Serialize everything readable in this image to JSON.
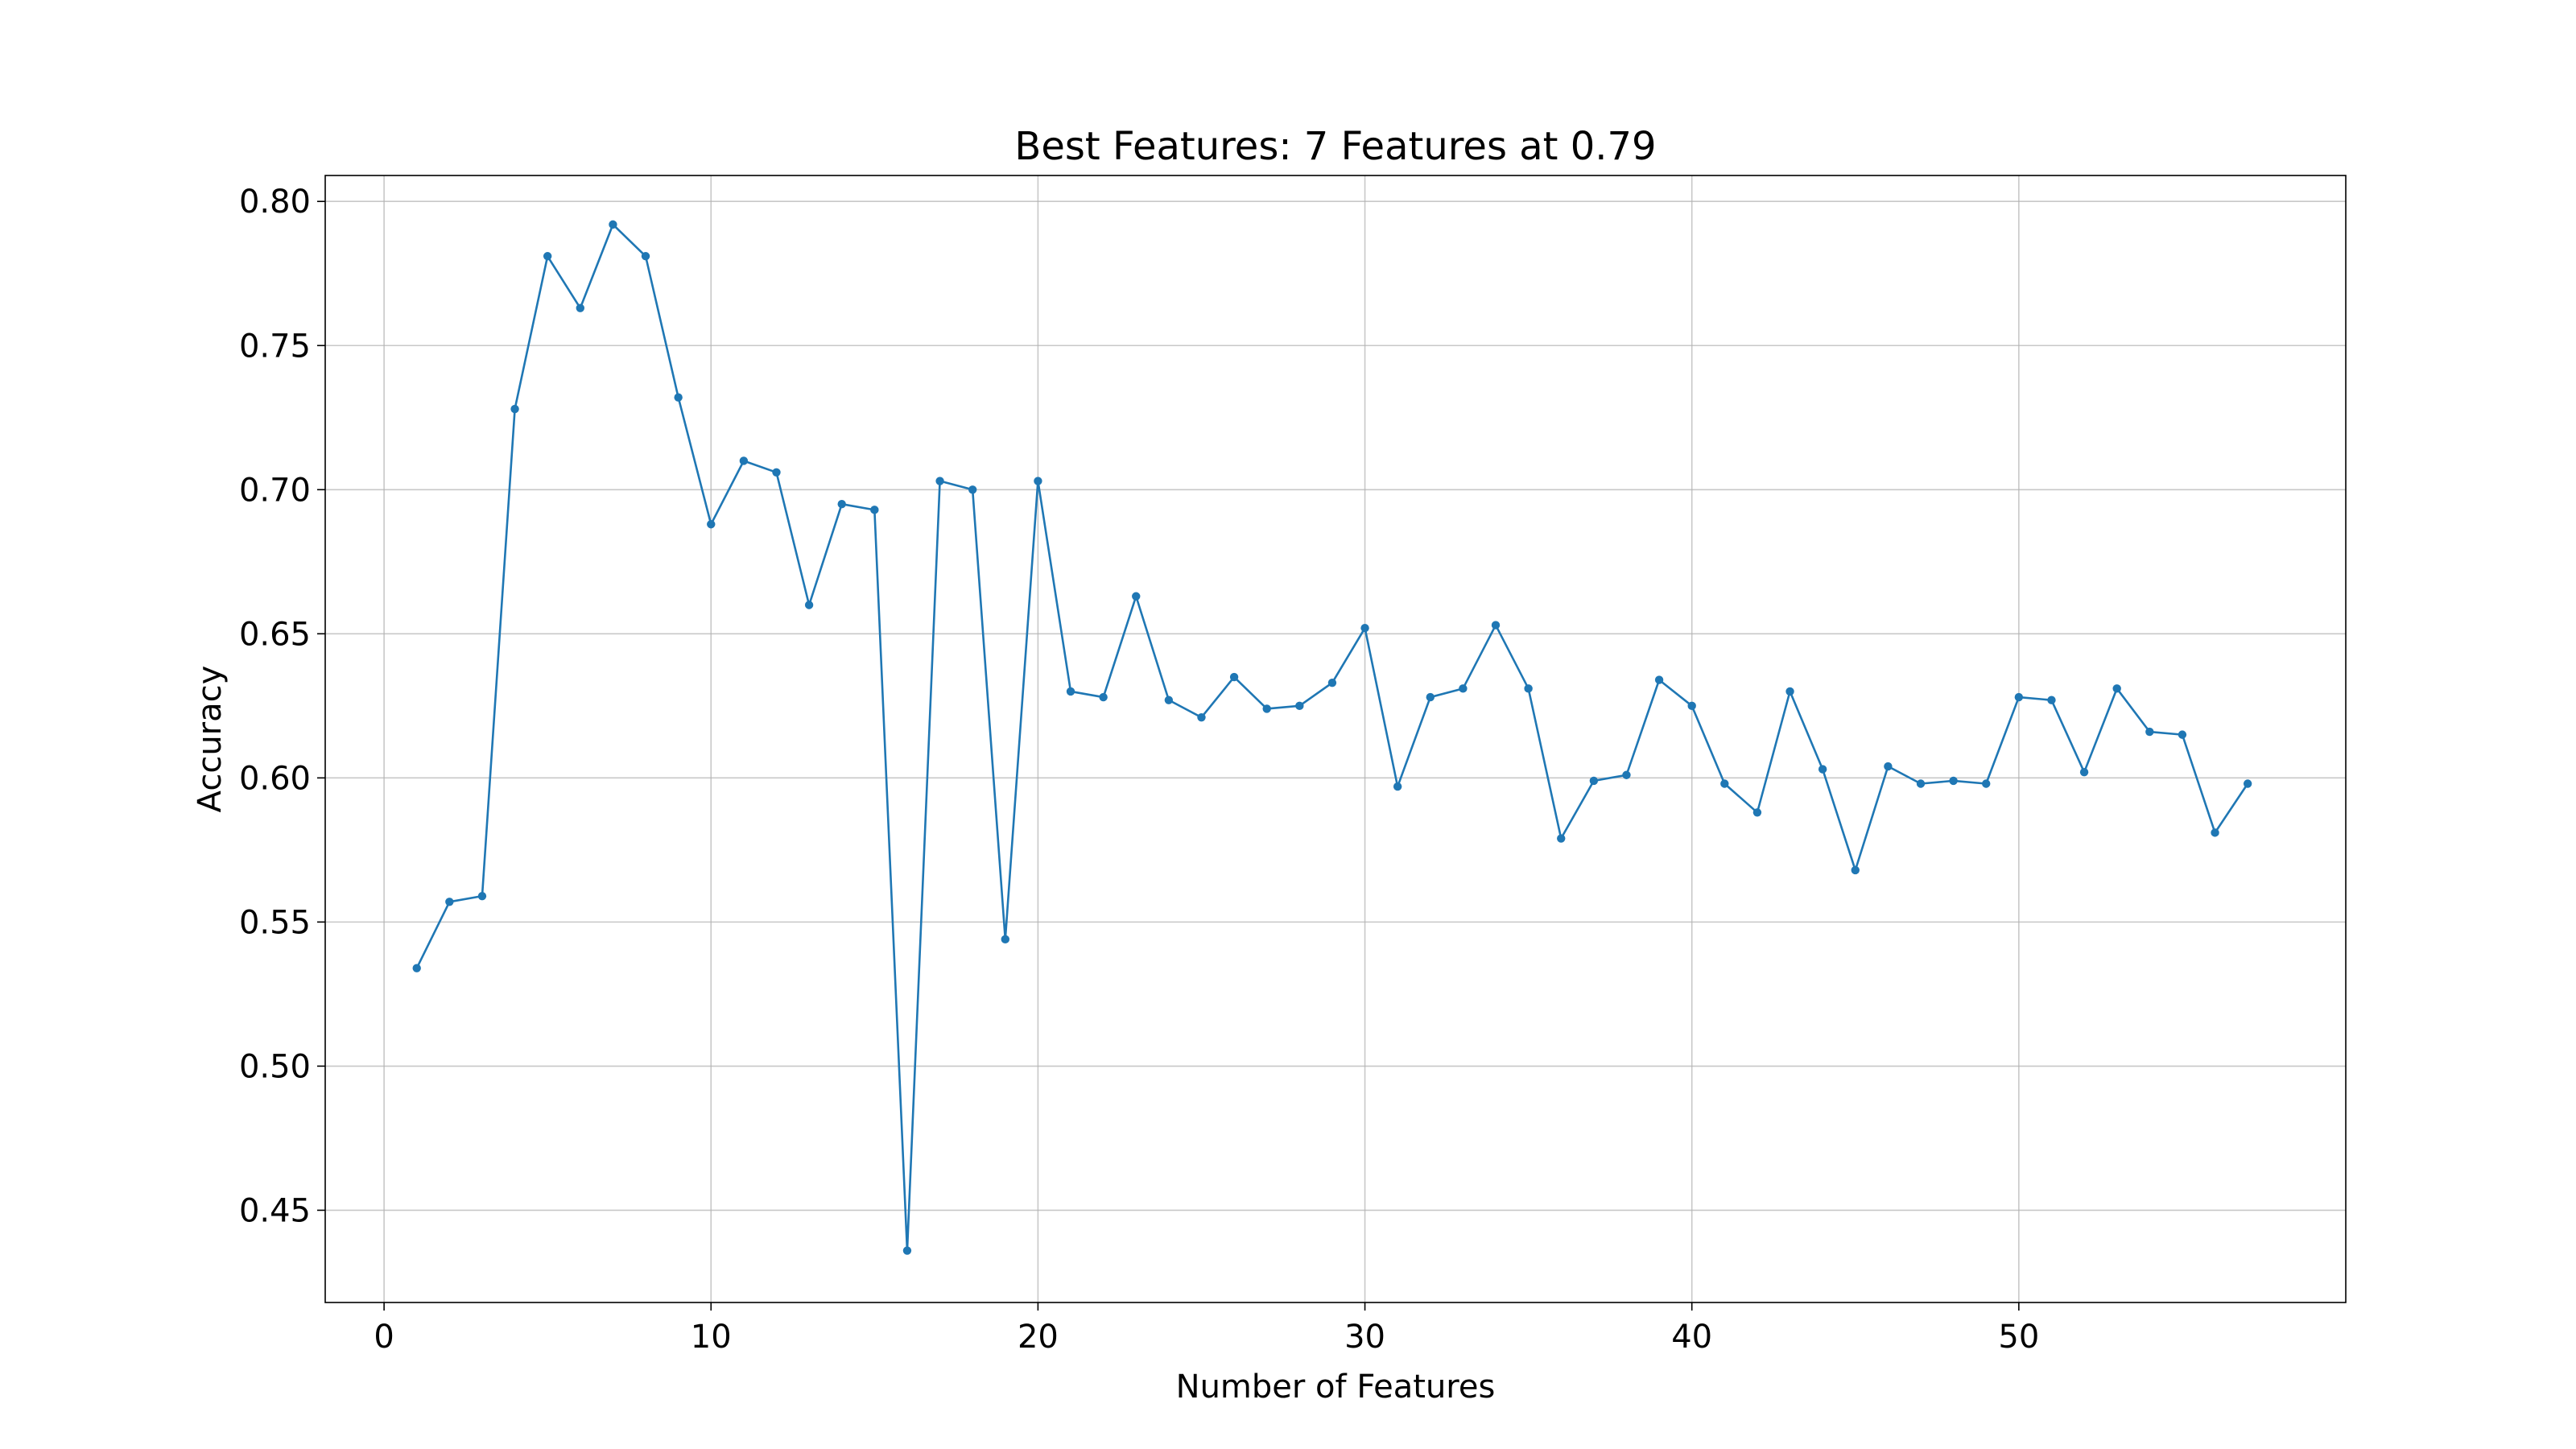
{
  "chart_data": {
    "type": "line",
    "title": "Best Features: 7 Features at 0.79",
    "xlabel": "Number of Features",
    "ylabel": "Accuracy",
    "xlim": [
      -1.8,
      60.0
    ],
    "ylim": [
      0.418,
      0.809
    ],
    "xticks": [
      0,
      10,
      20,
      30,
      40,
      50
    ],
    "xtick_labels": [
      "0",
      "10",
      "20",
      "30",
      "40",
      "50"
    ],
    "yticks": [
      0.45,
      0.5,
      0.55,
      0.6,
      0.65,
      0.7,
      0.75,
      0.8
    ],
    "ytick_labels": [
      "0.45",
      "0.50",
      "0.55",
      "0.60",
      "0.65",
      "0.70",
      "0.75",
      "0.80"
    ],
    "grid": true,
    "color": "#1f77b4",
    "marker": "circle",
    "x": [
      1,
      2,
      3,
      4,
      5,
      6,
      7,
      8,
      9,
      10,
      11,
      12,
      13,
      14,
      15,
      16,
      17,
      18,
      19,
      20,
      21,
      22,
      23,
      24,
      25,
      26,
      27,
      28,
      29,
      30,
      31,
      32,
      33,
      34,
      35,
      36,
      37,
      38,
      39,
      40,
      41,
      42,
      43,
      44,
      45,
      46,
      47,
      48,
      49,
      50,
      51,
      52,
      53,
      54,
      55,
      56,
      57
    ],
    "y": [
      0.534,
      0.557,
      0.559,
      0.728,
      0.781,
      0.763,
      0.792,
      0.781,
      0.732,
      0.688,
      0.71,
      0.706,
      0.66,
      0.695,
      0.693,
      0.436,
      0.703,
      0.7,
      0.544,
      0.703,
      0.63,
      0.628,
      0.663,
      0.627,
      0.621,
      0.635,
      0.624,
      0.625,
      0.633,
      0.652,
      0.597,
      0.628,
      0.631,
      0.653,
      0.631,
      0.579,
      0.599,
      0.601,
      0.634,
      0.625,
      0.598,
      0.588,
      0.63,
      0.603,
      0.568,
      0.604,
      0.598,
      0.599,
      0.598,
      0.628,
      0.627,
      0.602,
      0.631,
      0.616,
      0.615,
      0.581,
      0.598
    ]
  }
}
